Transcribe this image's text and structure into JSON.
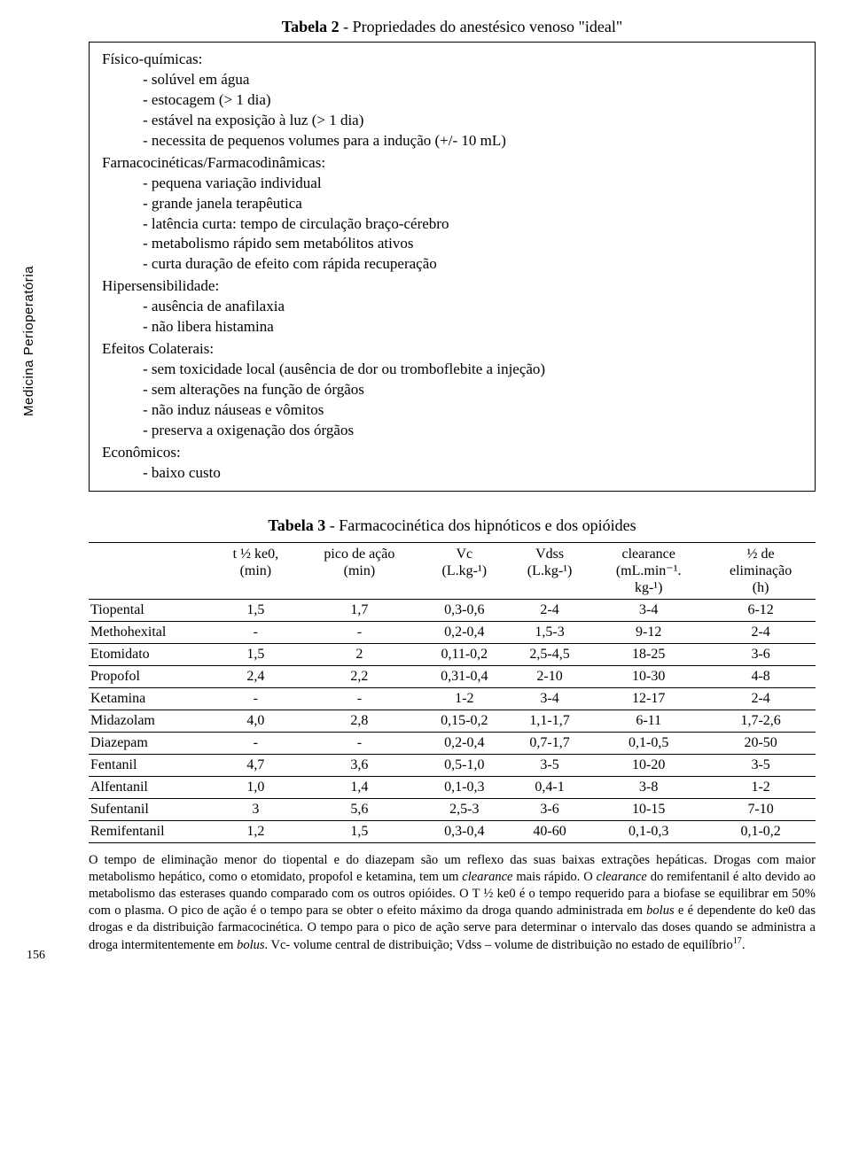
{
  "sidebar_label": "Medicina Perioperatória",
  "page_number": "156",
  "table2": {
    "title_prefix": "Tabela 2",
    "title_rest": " - Propriedades do anestésico venoso \"ideal\"",
    "sections": [
      {
        "head": "Físico-químicas:",
        "items": [
          "- solúvel em água",
          "- estocagem (> 1 dia)",
          "- estável na exposição à luz (> 1 dia)",
          "- necessita de pequenos volumes para a indução (+/- 10 mL)"
        ]
      },
      {
        "head": "Farnacocinéticas/Farmacodinâmicas:",
        "items": [
          "- pequena variação individual",
          "- grande janela terapêutica",
          "- latência curta: tempo de circulação braço-cérebro",
          "- metabolismo rápido sem metabólitos ativos",
          "- curta duração de efeito com rápida recuperação"
        ]
      },
      {
        "head": "Hipersensibilidade:",
        "items": [
          "- ausência de anafilaxia",
          "- não libera histamina"
        ]
      },
      {
        "head": "Efeitos Colaterais:",
        "items": [
          "- sem toxicidade local (ausência de dor ou tromboflebite a injeção)",
          "- sem alterações na função de órgãos",
          "- não induz náuseas e vômitos",
          "- preserva a oxigenação dos órgãos"
        ]
      },
      {
        "head": "Econômicos:",
        "items": [
          "- baixo custo"
        ]
      }
    ]
  },
  "table3": {
    "title_prefix": "Tabela 3",
    "title_rest": " -  Farmacocinética dos hipnóticos e dos opióides",
    "columns": [
      {
        "l1": "",
        "l2": "",
        "l3": ""
      },
      {
        "l1": "t ½ ke0,",
        "l2": "(min)",
        "l3": ""
      },
      {
        "l1": "pico de ação",
        "l2": "(min)",
        "l3": ""
      },
      {
        "l1": "Vc",
        "l2": "(L.kg-¹)",
        "l3": ""
      },
      {
        "l1": "Vdss",
        "l2": "(L.kg-¹)",
        "l3": ""
      },
      {
        "l1": "clearance",
        "l2": "(mL.min⁻¹.",
        "l3": "kg-¹)"
      },
      {
        "l1": "½ de",
        "l2": "eliminação",
        "l3": "(h)"
      }
    ],
    "rows": [
      [
        "Tiopental",
        "1,5",
        "1,7",
        "0,3-0,6",
        "2-4",
        "3-4",
        "6-12"
      ],
      [
        "Methohexital",
        "-",
        "-",
        "0,2-0,4",
        "1,5-3",
        "9-12",
        "2-4"
      ],
      [
        "Etomidato",
        "1,5",
        "2",
        "0,11-0,2",
        "2,5-4,5",
        "18-25",
        "3-6"
      ],
      [
        "Propofol",
        "2,4",
        "2,2",
        "0,31-0,4",
        "2-10",
        "10-30",
        "4-8"
      ],
      [
        "Ketamina",
        "-",
        "-",
        "1-2",
        "3-4",
        "12-17",
        "2-4"
      ],
      [
        "Midazolam",
        "4,0",
        "2,8",
        "0,15-0,2",
        "1,1-1,7",
        "6-11",
        "1,7-2,6"
      ],
      [
        "Diazepam",
        "-",
        "-",
        "0,2-0,4",
        "0,7-1,7",
        "0,1-0,5",
        "20-50"
      ],
      [
        "Fentanil",
        "4,7",
        "3,6",
        "0,5-1,0",
        "3-5",
        "10-20",
        "3-5"
      ],
      [
        "Alfentanil",
        "1,0",
        "1,4",
        "0,1-0,3",
        "0,4-1",
        "3-8",
        "1-2"
      ],
      [
        "Sufentanil",
        "3",
        "5,6",
        "2,5-3",
        "3-6",
        "10-15",
        "7-10"
      ],
      [
        "Remifentanil",
        "1,2",
        "1,5",
        "0,3-0,4",
        "40-60",
        "0,1-0,3",
        "0,1-0,2"
      ]
    ]
  },
  "footnote": {
    "p1a": "O tempo de eliminação menor do tiopental e do diazepam são um reflexo das suas baixas extrações hepáticas.  Drogas com maior metabolismo hepático, como o etomidato, propofol e ketamina, tem um ",
    "p1b_i": "clearance",
    "p1c": " mais rápido.  O ",
    "p1d_i": "clearance",
    "p1e": " do remifentanil é alto devido ao metabolismo das esterases quando comparado com os outros opióides.  O T ½ ke0 é o tempo requerido para a biofase se equilibrar em 50% com o plasma.  O pico de ação é o tempo para se obter o efeito máximo da droga quando administrada em ",
    "p1f_i": "bolus",
    "p1g": " e é dependente do ke0 das drogas e da distribuição farmacocinética.  O tempo para o pico de ação serve para determinar o intervalo das doses quando se administra a droga intermitentemente em ",
    "p1h_i": "bolus",
    "p1i": ".   Vc- volume central de distribuição; Vdss – volume de distribuição no estado de equilíbrio",
    "p1j_sup": "17",
    "p1k": "."
  }
}
